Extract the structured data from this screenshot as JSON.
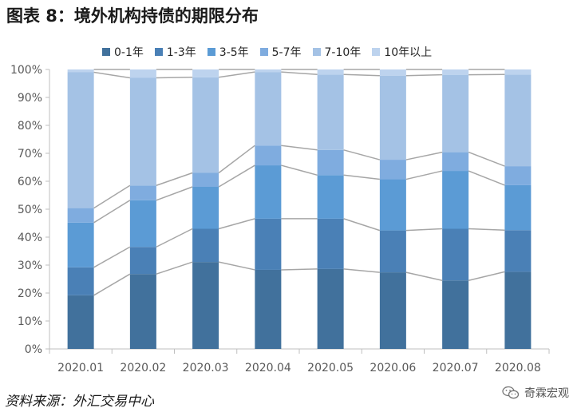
{
  "title": "图表 8：境外机构持债的期限分布",
  "source": "资料来源：外汇交易中心",
  "watermark": "奇霖宏观",
  "watermark_icon": "wechat-icon",
  "colors": [
    "#41719c",
    "#4a80b6",
    "#5b9bd5",
    "#7facdf",
    "#a4c2e5",
    "#bdd3ee"
  ],
  "chart_data": {
    "type": "bar",
    "stacked": true,
    "categories": [
      "2020.01",
      "2020.02",
      "2020.03",
      "2020.04",
      "2020.05",
      "2020.06",
      "2020.07",
      "2020.08"
    ],
    "series": [
      {
        "name": "0-1年",
        "values": [
          19.2,
          26.8,
          31.1,
          28.3,
          28.6,
          27.4,
          24.5,
          27.6
        ]
      },
      {
        "name": "1-3年",
        "values": [
          10.0,
          9.7,
          11.9,
          18.3,
          18.0,
          15.0,
          18.5,
          14.9
        ]
      },
      {
        "name": "3-5年",
        "values": [
          16.0,
          16.7,
          15.0,
          19.1,
          15.6,
          18.3,
          20.7,
          16.1
        ]
      },
      {
        "name": "5-7年",
        "values": [
          5.2,
          5.3,
          5.0,
          7.1,
          9.0,
          7.0,
          6.7,
          6.8
        ]
      },
      {
        "name": "7-10年",
        "values": [
          48.6,
          38.5,
          34.2,
          26.3,
          27.0,
          30.1,
          27.7,
          32.8
        ]
      },
      {
        "name": "10年以上",
        "values": [
          1.0,
          3.0,
          2.8,
          0.9,
          1.8,
          2.2,
          1.9,
          1.8
        ]
      }
    ],
    "yticks": [
      "0%",
      "10%",
      "20%",
      "30%",
      "40%",
      "50%",
      "60%",
      "70%",
      "80%",
      "90%",
      "100%"
    ],
    "ylim": [
      0,
      100
    ],
    "grid": false,
    "legend_position": "top",
    "connector_lines": true
  }
}
